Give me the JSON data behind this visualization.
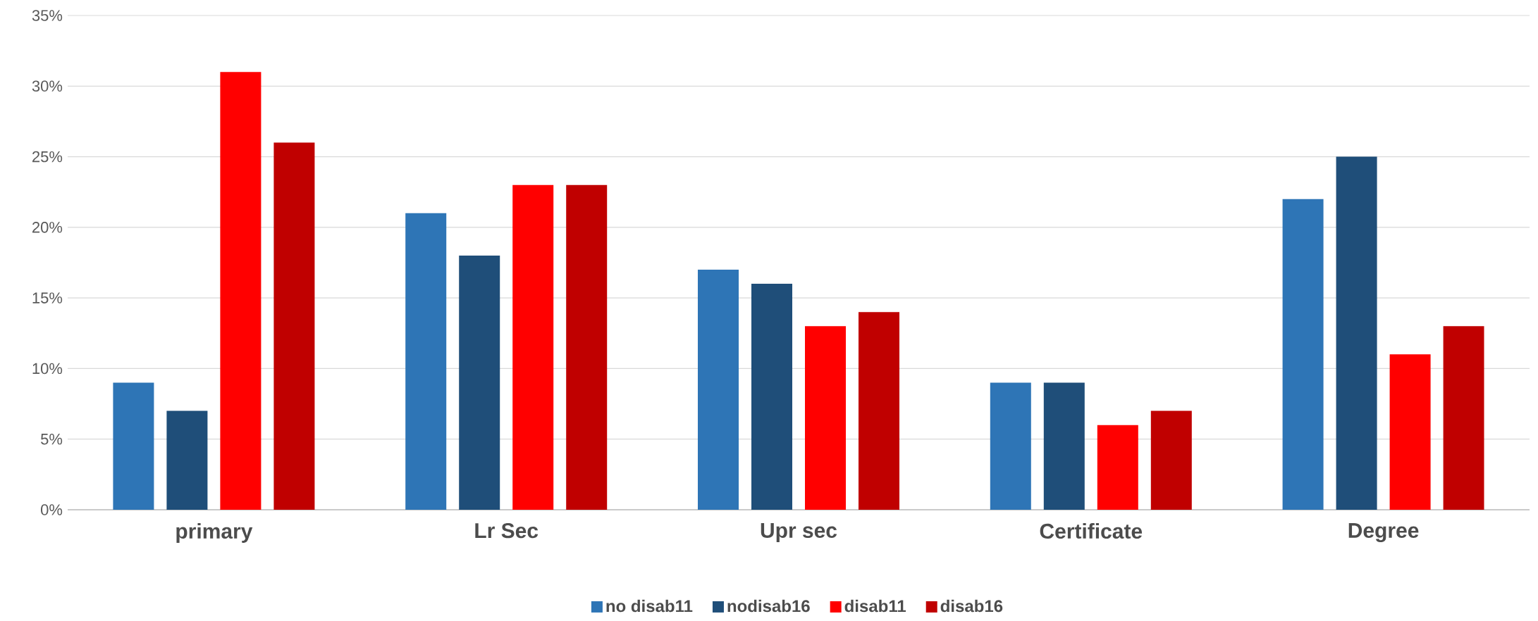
{
  "chart_data": {
    "type": "bar",
    "categories": [
      "primary",
      "Lr Sec",
      "Upr sec",
      "Certificate",
      "Degree"
    ],
    "series": [
      {
        "name": "no disab11",
        "color": "#2e75b6",
        "values": [
          9,
          21,
          17,
          9,
          22
        ]
      },
      {
        "name": "nodisab16",
        "color": "#1f4e79",
        "values": [
          7,
          18,
          16,
          9,
          25
        ]
      },
      {
        "name": "disab11",
        "color": "#ff0000",
        "values": [
          31,
          23,
          13,
          6,
          11
        ]
      },
      {
        "name": "disab16",
        "color": "#c00000",
        "values": [
          26,
          23,
          14,
          7,
          13
        ]
      }
    ],
    "ylim": [
      0,
      35
    ],
    "yticks": [
      {
        "value": 0,
        "label": "0%"
      },
      {
        "value": 5,
        "label": "5%"
      },
      {
        "value": 10,
        "label": "10%"
      },
      {
        "value": 15,
        "label": "15%"
      },
      {
        "value": 20,
        "label": "20%"
      },
      {
        "value": 25,
        "label": "25%"
      },
      {
        "value": 30,
        "label": "30%"
      },
      {
        "value": 35,
        "label": "35%"
      }
    ],
    "grid": "y",
    "legend": "bottom"
  }
}
